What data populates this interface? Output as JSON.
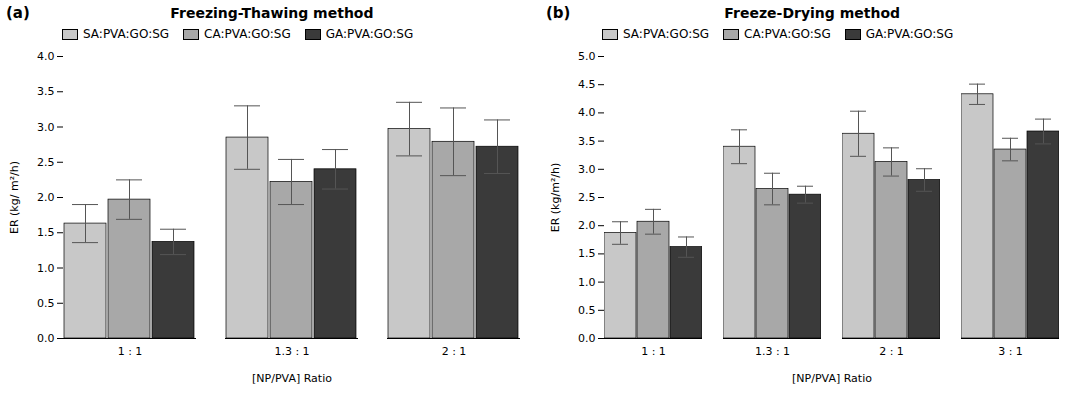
{
  "chart_data": [
    {
      "type": "bar",
      "title": "Freezing-Thawing method",
      "annotations": [
        "(a)"
      ],
      "xlabel": "[NP/PVA] Ratio",
      "ylabel": "ER (kg/ m²/h)",
      "categories": [
        "1 : 1",
        "1.3 : 1",
        "2 : 1"
      ],
      "series": [
        {
          "name": "SA:PVA:GO:SG",
          "color": "#c8c8c8",
          "values": [
            1.63,
            2.85,
            2.97
          ],
          "errors": [
            0.27,
            0.45,
            0.38
          ]
        },
        {
          "name": "CA:PVA:GO:SG",
          "color": "#a8a8a8",
          "values": [
            1.97,
            2.22,
            2.79
          ],
          "errors": [
            0.28,
            0.32,
            0.48
          ]
        },
        {
          "name": "GA:PVA:GO:SG",
          "color": "#3a3a3a",
          "values": [
            1.37,
            2.4,
            2.72
          ],
          "errors": [
            0.18,
            0.28,
            0.38
          ]
        }
      ],
      "ylim": [
        0.0,
        4.0
      ],
      "yticks": [
        {
          "value": 0,
          "label": "0.0"
        },
        0.5,
        {
          "value": 1,
          "label": "1.0"
        },
        1.5,
        {
          "value": 2,
          "label": "2.0"
        },
        2.5,
        {
          "value": 3,
          "label": "3.0"
        },
        3.5,
        {
          "value": 4,
          "label": "4.0"
        }
      ],
      "grid": false,
      "legend": "upper left"
    },
    {
      "type": "bar",
      "title": "Freeze-Drying method",
      "annotations": [
        "(b)"
      ],
      "xlabel": "[NP/PVA] Ratio",
      "ylabel": "ER (kg/m²/h)",
      "categories": [
        "1 : 1",
        "1.3 : 1",
        "2 : 1",
        "3 : 1"
      ],
      "series": [
        {
          "name": "SA:PVA:GO:SG",
          "color": "#c8c8c8",
          "values": [
            1.87,
            3.4,
            3.63,
            4.33
          ],
          "errors": [
            0.2,
            0.3,
            0.4,
            0.18
          ]
        },
        {
          "name": "CA:PVA:GO:SG",
          "color": "#a8a8a8",
          "values": [
            2.07,
            2.65,
            3.13,
            3.35
          ],
          "errors": [
            0.22,
            0.28,
            0.25,
            0.2
          ]
        },
        {
          "name": "GA:PVA:GO:SG",
          "color": "#3a3a3a",
          "values": [
            1.62,
            2.55,
            2.81,
            3.67
          ],
          "errors": [
            0.18,
            0.15,
            0.2,
            0.22
          ]
        }
      ],
      "ylim": [
        0.0,
        5.0
      ],
      "yticks": [
        {
          "value": 0,
          "label": "0.0"
        },
        0.5,
        {
          "value": 1,
          "label": "1.0"
        },
        1.5,
        {
          "value": 2,
          "label": "2.0"
        },
        2.5,
        {
          "value": 3,
          "label": "3.0"
        },
        3.5,
        {
          "value": 4,
          "label": "4.0"
        },
        4.5,
        {
          "value": 5,
          "label": "5.0"
        }
      ],
      "grid": false,
      "legend": "upper left"
    }
  ]
}
